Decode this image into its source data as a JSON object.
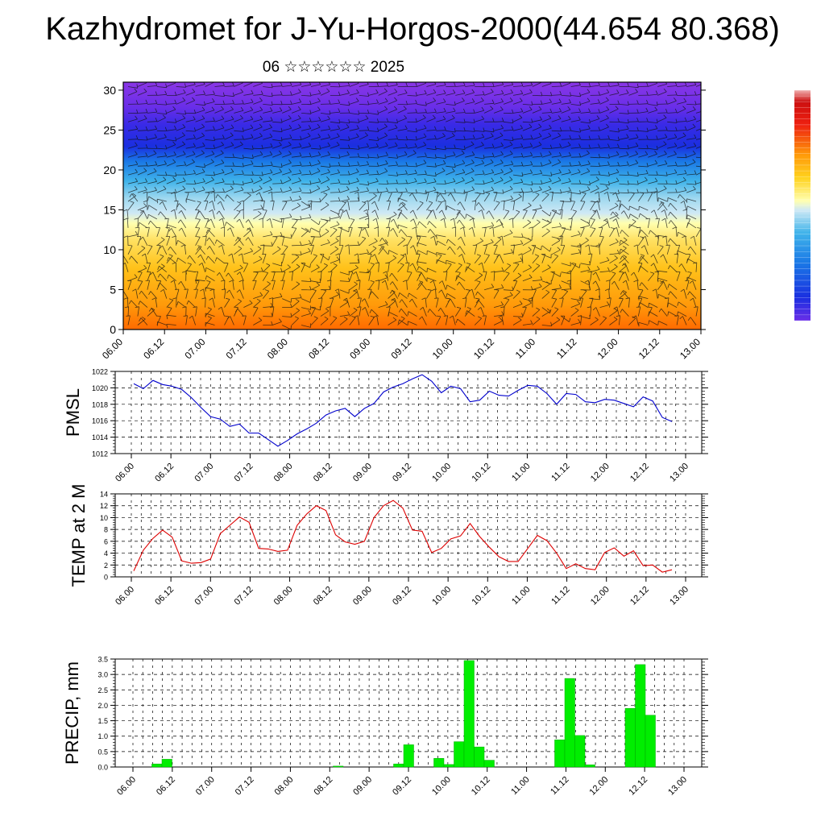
{
  "title": "Kazhydromet for J-Yu-Horgos-2000(44.654 80.368)",
  "subtitle": "06 ☆☆☆☆☆☆ 2025",
  "chart_data": [
    {
      "type": "heatmap",
      "title": "",
      "ylabel": "",
      "ylim": [
        0,
        31
      ],
      "yticks": [
        0,
        5,
        10,
        15,
        20,
        25,
        30
      ],
      "xticks": [
        "06.00",
        "06.12",
        "07.00",
        "07.12",
        "08.00",
        "08.12",
        "09.00",
        "09.12",
        "10.00",
        "10.12",
        "11.00",
        "11.12",
        "12.00",
        "12.12",
        "13.00"
      ],
      "overlay": "wind barbs",
      "colorbar": {
        "position": "right",
        "labels": []
      },
      "colors": {
        "low": "#ff6a00",
        "mid_low": "#ffd21e",
        "mid": "#ffffa0",
        "mid_high": "#9fd8ef",
        "high_blue": "#1a2fe0",
        "top": "#7d2be6"
      }
    },
    {
      "type": "line",
      "ylabel": "PMSL",
      "ylim": [
        1012,
        1022
      ],
      "yticks": [
        1012,
        1014,
        1016,
        1018,
        1020,
        1022
      ],
      "xticks": [
        "06.00",
        "06.12",
        "07.00",
        "07.12",
        "08.00",
        "08.12",
        "09.00",
        "09.12",
        "10.00",
        "10.12",
        "11.00",
        "11.12",
        "12.00",
        "12.12",
        "13.00"
      ],
      "color": "#0000cc",
      "values": [
        1020.5,
        1019.9,
        1020.9,
        1020.4,
        1020.2,
        1019.8,
        1018.8,
        1017.6,
        1016.5,
        1016.2,
        1015.3,
        1015.6,
        1014.5,
        1014.5,
        1013.7,
        1012.9,
        1013.6,
        1014.4,
        1015.0,
        1015.7,
        1016.7,
        1017.2,
        1017.5,
        1016.5,
        1017.5,
        1018.1,
        1019.5,
        1020.1,
        1020.5,
        1021.1,
        1021.6,
        1020.8,
        1019.4,
        1020.2,
        1019.9,
        1018.3,
        1018.5,
        1019.6,
        1019.1,
        1019.0,
        1019.7,
        1020.3,
        1020.2,
        1019.3,
        1018.0,
        1019.3,
        1019.2,
        1018.3,
        1018.2,
        1018.6,
        1018.5,
        1018.1,
        1017.7,
        1018.9,
        1018.4,
        1016.4,
        1015.9
      ]
    },
    {
      "type": "line",
      "ylabel": "TEMP at 2 M",
      "ylim": [
        0,
        14
      ],
      "yticks": [
        0,
        2,
        4,
        6,
        8,
        10,
        12,
        14
      ],
      "xticks": [
        "06.00",
        "06.12",
        "07.00",
        "07.12",
        "08.00",
        "08.12",
        "09.00",
        "09.12",
        "10.00",
        "10.12",
        "11.00",
        "11.12",
        "12.00",
        "12.12",
        "13.00"
      ],
      "color": "#dd0000",
      "values": [
        1.0,
        4.5,
        6.5,
        7.9,
        6.7,
        2.7,
        2.3,
        2.4,
        3.0,
        7.3,
        8.7,
        10.1,
        9.2,
        4.8,
        4.7,
        4.3,
        4.5,
        8.7,
        10.6,
        12.0,
        11.2,
        7.1,
        5.9,
        5.5,
        6.0,
        10.0,
        12.0,
        12.9,
        11.6,
        7.9,
        7.7,
        4.1,
        4.8,
        6.4,
        6.9,
        9.0,
        6.8,
        5.0,
        3.4,
        2.6,
        2.6,
        4.8,
        7.0,
        6.1,
        4.0,
        1.4,
        2.2,
        1.4,
        1.2,
        4.1,
        4.9,
        3.5,
        4.4,
        1.9,
        2.0,
        0.8,
        1.2
      ]
    },
    {
      "type": "bar",
      "ylabel": "PRECIP, mm",
      "ylim": [
        0,
        3.5
      ],
      "yticks": [
        "0.0",
        "0.5",
        "1.0",
        "1.5",
        "2.0",
        "2.5",
        "3.0",
        "3.5"
      ],
      "xticks": [
        "06.00",
        "06.12",
        "07.00",
        "07.12",
        "08.00",
        "08.12",
        "09.00",
        "09.12",
        "10.00",
        "10.12",
        "11.00",
        "11.12",
        "12.00",
        "12.12",
        "13.00"
      ],
      "color": "#00ee00",
      "values": [
        0,
        0,
        0,
        0.1,
        0.25,
        0,
        0,
        0,
        0,
        0,
        0,
        0,
        0,
        0,
        0,
        0,
        0,
        0,
        0,
        0,
        0,
        0.03,
        0,
        0,
        0,
        0,
        0,
        0.1,
        0.72,
        0,
        0,
        0.28,
        0.08,
        0.82,
        3.45,
        0.65,
        0.22,
        0,
        0,
        0,
        0,
        0,
        0,
        0.88,
        2.87,
        1.02,
        0.07,
        0,
        0,
        0,
        1.9,
        3.32,
        1.68,
        0,
        0,
        0
      ]
    }
  ]
}
